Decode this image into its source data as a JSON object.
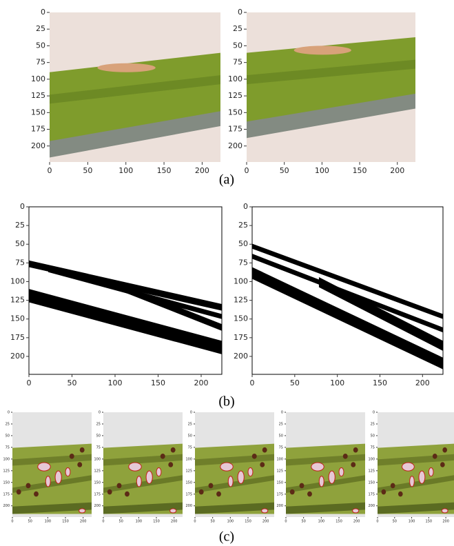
{
  "figure": {
    "panels": [
      {
        "caption": "(a)",
        "style": "photo",
        "plots": [
          {
            "xlim": [
              0,
              224
            ],
            "ylim": [
              0,
              224
            ],
            "xticks": [
              0,
              50,
              100,
              150,
              200
            ],
            "yticks": [
              0,
              25,
              50,
              75,
              100,
              125,
              150,
              175,
              200
            ]
          },
          {
            "xlim": [
              0,
              224
            ],
            "ylim": [
              0,
              224
            ],
            "xticks": [
              0,
              50,
              100,
              150,
              200
            ],
            "yticks": [
              0,
              25,
              50,
              75,
              100,
              125,
              150,
              175,
              200
            ]
          }
        ]
      },
      {
        "caption": "(b)",
        "style": "binary",
        "plots": [
          {
            "xlim": [
              0,
              224
            ],
            "ylim": [
              0,
              224
            ],
            "xticks": [
              0,
              50,
              100,
              150,
              200
            ],
            "yticks": [
              0,
              25,
              50,
              75,
              100,
              125,
              150,
              175,
              200
            ]
          },
          {
            "xlim": [
              0,
              224
            ],
            "ylim": [
              0,
              224
            ],
            "xticks": [
              0,
              50,
              100,
              150,
              200
            ],
            "yticks": [
              0,
              25,
              50,
              75,
              100,
              125,
              150,
              175,
              200
            ]
          }
        ]
      },
      {
        "caption": "(c)",
        "style": "lesion",
        "plots": [
          {
            "xlim": [
              0,
              224
            ],
            "ylim": [
              0,
              224
            ],
            "xticks": [
              0,
              50,
              100,
              150,
              200
            ],
            "yticks": [
              0,
              25,
              50,
              75,
              100,
              125,
              150,
              175,
              200
            ]
          },
          {
            "xlim": [
              0,
              224
            ],
            "ylim": [
              0,
              224
            ],
            "xticks": [
              0,
              50,
              100,
              150,
              200
            ],
            "yticks": [
              0,
              25,
              50,
              75,
              100,
              125,
              150,
              175,
              200
            ]
          },
          {
            "xlim": [
              0,
              224
            ],
            "ylim": [
              0,
              224
            ],
            "xticks": [
              0,
              50,
              100,
              150,
              200
            ],
            "yticks": [
              0,
              25,
              50,
              75,
              100,
              125,
              150,
              175,
              200
            ]
          },
          {
            "xlim": [
              0,
              224
            ],
            "ylim": [
              0,
              224
            ],
            "xticks": [
              0,
              50,
              100,
              150,
              200
            ],
            "yticks": [
              0,
              25,
              50,
              75,
              100,
              125,
              150,
              175,
              200
            ]
          },
          {
            "xlim": [
              0,
              224
            ],
            "ylim": [
              0,
              224
            ],
            "xticks": [
              0,
              50,
              100,
              150,
              200
            ],
            "yticks": [
              0,
              25,
              50,
              75,
              100,
              125,
              150,
              175,
              200
            ]
          }
        ]
      }
    ]
  }
}
